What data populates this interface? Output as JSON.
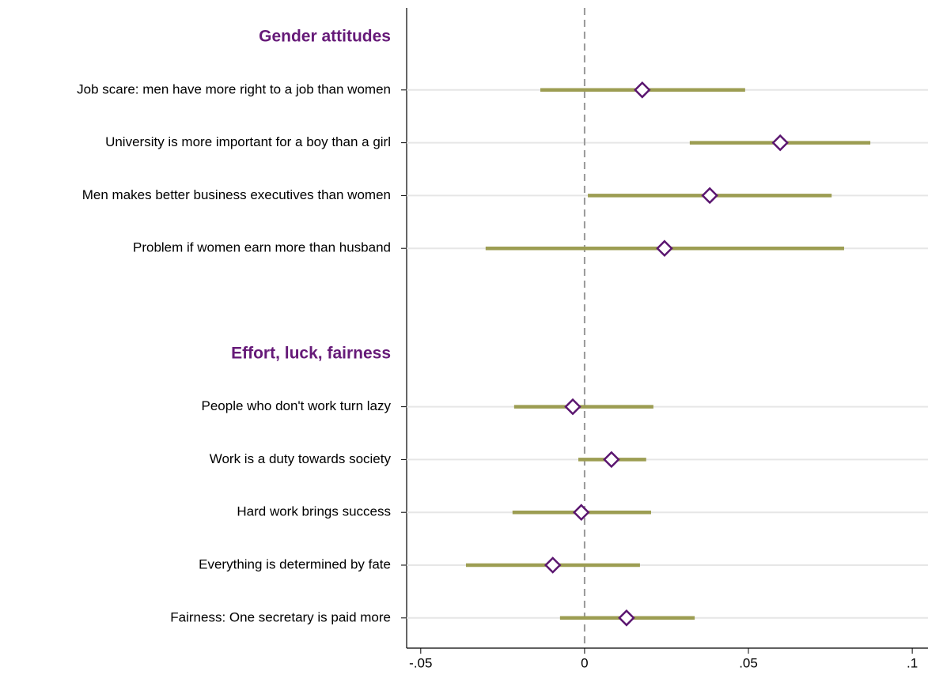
{
  "chart_data": {
    "type": "coefplot",
    "groups": [
      {
        "name": "Gender attitudes",
        "categories": [
          "Job scare: men have more right to a job than women",
          "University is more important for a boy than a girl",
          "Men makes better business executives than women",
          "Problem if women earn more than husband"
        ],
        "values": [
          0.0176,
          0.0597,
          0.0382,
          0.0244
        ],
        "lower": [
          -0.0135,
          0.0321,
          0.001,
          -0.0302
        ],
        "upper": [
          0.049,
          0.0872,
          0.0754,
          0.0792
        ]
      },
      {
        "name": "Effort, luck, fairness",
        "categories": [
          "People who don't work turn lazy",
          "Work is a duty towards society",
          "Hard work brings success",
          "Everything is determined by fate",
          "Fairness: One secretary is paid more"
        ],
        "values": [
          -0.0036,
          0.0082,
          -0.001,
          -0.0097,
          0.0128
        ],
        "lower": [
          -0.0215,
          -0.0019,
          -0.022,
          -0.0362,
          -0.0075
        ],
        "upper": [
          0.021,
          0.0188,
          0.0203,
          0.0169,
          0.0336
        ]
      }
    ],
    "xlim": [
      -0.0543,
      0.1048
    ],
    "xticks": [
      {
        "value": -0.05,
        "label": "-.05"
      },
      {
        "value": 0,
        "label": "0"
      },
      {
        "value": 0.05,
        "label": ".05"
      },
      {
        "value": 0.1,
        "label": ".1"
      }
    ],
    "xline": 0,
    "grid": true,
    "ci_color": "#9c9d52",
    "marker_color": "#5b1670",
    "header_color": "#661a78"
  }
}
